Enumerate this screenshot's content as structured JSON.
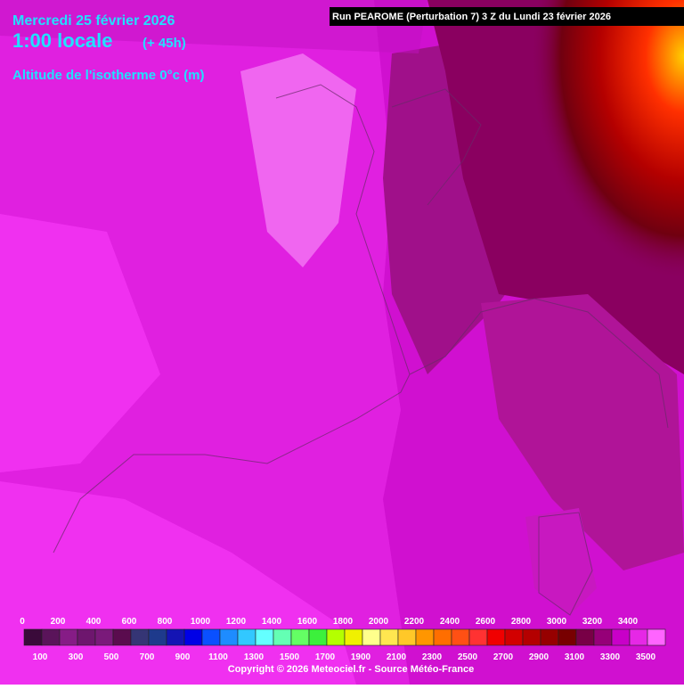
{
  "header": {
    "date": "Mercredi 25 février 2026",
    "time": "1:00 locale",
    "lead": "(+ 45h)",
    "parameter": "Altitude de l'isotherme 0°c (m)",
    "run": "Run PEAROME (Perturbation 7) 3 Z du Lundi 23 février 2026"
  },
  "legend": {
    "levels": [
      {
        "value": 0,
        "color": "#3a0a3a"
      },
      {
        "value": 100,
        "color": "#5a145a"
      },
      {
        "value": 200,
        "color": "#861c86"
      },
      {
        "value": 300,
        "color": "#6e166e"
      },
      {
        "value": 400,
        "color": "#7a1a7a"
      },
      {
        "value": 500,
        "color": "#5a0c4e"
      },
      {
        "value": 600,
        "color": "#353575"
      },
      {
        "value": 700,
        "color": "#1e3a8c"
      },
      {
        "value": 800,
        "color": "#1414b4"
      },
      {
        "value": 900,
        "color": "#0000e6"
      },
      {
        "value": 1000,
        "color": "#0a50ff"
      },
      {
        "value": 1100,
        "color": "#1e8cff"
      },
      {
        "value": 1200,
        "color": "#32c8ff"
      },
      {
        "value": 1300,
        "color": "#64ffff"
      },
      {
        "value": 1400,
        "color": "#64ffb4"
      },
      {
        "value": 1500,
        "color": "#64ff64"
      },
      {
        "value": 1600,
        "color": "#3cf03c"
      },
      {
        "value": 1700,
        "color": "#b4ff00"
      },
      {
        "value": 1800,
        "color": "#f0f000"
      },
      {
        "value": 1900,
        "color": "#ffff8c"
      },
      {
        "value": 2000,
        "color": "#ffe650"
      },
      {
        "value": 2100,
        "color": "#ffc828"
      },
      {
        "value": 2200,
        "color": "#ff9600"
      },
      {
        "value": 2300,
        "color": "#ff6e00"
      },
      {
        "value": 2400,
        "color": "#ff5014"
      },
      {
        "value": 2500,
        "color": "#ff3232"
      },
      {
        "value": 2600,
        "color": "#f00000"
      },
      {
        "value": 2700,
        "color": "#d20000"
      },
      {
        "value": 2800,
        "color": "#b40000"
      },
      {
        "value": 2900,
        "color": "#960000"
      },
      {
        "value": 3000,
        "color": "#780000"
      },
      {
        "value": 3100,
        "color": "#780046"
      },
      {
        "value": 3200,
        "color": "#960078"
      },
      {
        "value": 3300,
        "color": "#c800c8"
      },
      {
        "value": 3400,
        "color": "#e628e6"
      },
      {
        "value": 3500,
        "color": "#ff64ff"
      }
    ]
  },
  "footer": {
    "copyright": "Copyright © 2026 Meteociel.fr - Source Météo-France"
  }
}
